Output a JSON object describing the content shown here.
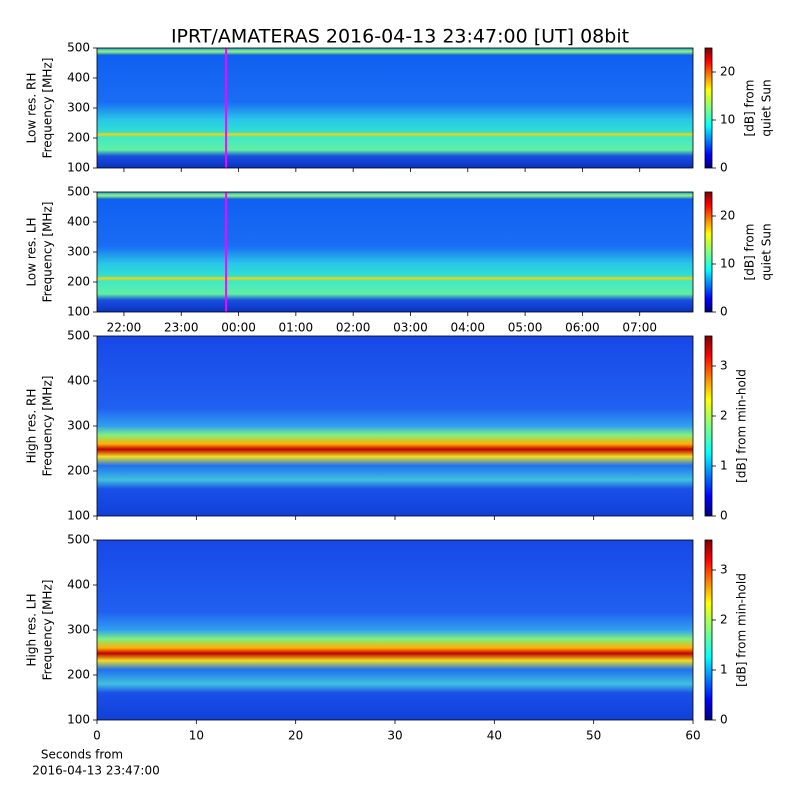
{
  "chart_data": [
    {
      "type": "heatmap",
      "title": "IPRT/AMATERAS 2016-04-13 23:47:00 [UT]   08bit",
      "ylabel": [
        "Low res. RH",
        "Frequency [MHz]"
      ],
      "xlim": [
        21.53,
        31.93
      ],
      "xticks": [
        22,
        23,
        24,
        25,
        26,
        27,
        28,
        29,
        30,
        31
      ],
      "ylim": [
        100,
        500
      ],
      "yticks": [
        100,
        200,
        300,
        400,
        500
      ],
      "marker_x": 23.783,
      "marker_color": "#ff00ff",
      "colormap": "jet",
      "clim": [
        0,
        25
      ],
      "cticks": [
        0,
        10,
        20
      ],
      "clabel": [
        "[dB] from",
        "quiet Sun"
      ]
    },
    {
      "type": "heatmap",
      "ylabel": [
        "Low res. LH",
        "Frequency [MHz]"
      ],
      "xlim": [
        21.53,
        31.93
      ],
      "xticks": [
        {
          "value": 22,
          "label": "22:00"
        },
        {
          "value": 23,
          "label": "23:00"
        },
        {
          "value": 24,
          "label": "00:00"
        },
        {
          "value": 25,
          "label": "01:00"
        },
        {
          "value": 26,
          "label": "02:00"
        },
        {
          "value": 27,
          "label": "03:00"
        },
        {
          "value": 28,
          "label": "04:00"
        },
        {
          "value": 29,
          "label": "05:00"
        },
        {
          "value": 30,
          "label": "06:00"
        },
        {
          "value": 31,
          "label": "07:00"
        }
      ],
      "ylim": [
        100,
        500
      ],
      "yticks": [
        100,
        200,
        300,
        400,
        500
      ],
      "marker_x": 23.783,
      "marker_color": "#ff00ff",
      "colormap": "jet",
      "clim": [
        0,
        25
      ],
      "cticks": [
        0,
        10,
        20
      ],
      "clabel": [
        "[dB] from",
        "quiet Sun"
      ]
    },
    {
      "type": "heatmap",
      "ylabel": [
        "High res. RH",
        "Frequency [MHz]"
      ],
      "xlim": [
        0,
        60
      ],
      "xticks": [
        0,
        10,
        20,
        30,
        40,
        50,
        60
      ],
      "ylim": [
        100,
        500
      ],
      "yticks": [
        100,
        200,
        300,
        400,
        500
      ],
      "colormap": "jet",
      "clim": [
        0,
        3.6
      ],
      "cticks": [
        0,
        1,
        2,
        3
      ],
      "clabel": [
        "[dB] from min-hold"
      ]
    },
    {
      "type": "heatmap",
      "ylabel": [
        "High res. LH",
        "Frequency [MHz]"
      ],
      "xlabel": [
        "Seconds from",
        "2016-04-13 23:47:00"
      ],
      "xlim": [
        0,
        60
      ],
      "xticks": [
        {
          "value": 0,
          "label": "0"
        },
        {
          "value": 10,
          "label": "10"
        },
        {
          "value": 20,
          "label": "20"
        },
        {
          "value": 30,
          "label": "30"
        },
        {
          "value": 40,
          "label": "40"
        },
        {
          "value": 50,
          "label": "50"
        },
        {
          "value": 60,
          "label": "60"
        }
      ],
      "ylim": [
        100,
        500
      ],
      "yticks": [
        100,
        200,
        300,
        400,
        500
      ],
      "colormap": "jet",
      "clim": [
        0,
        3.6
      ],
      "cticks": [
        0,
        1,
        2,
        3
      ],
      "clabel": [
        "[dB] from min-hold"
      ]
    }
  ]
}
